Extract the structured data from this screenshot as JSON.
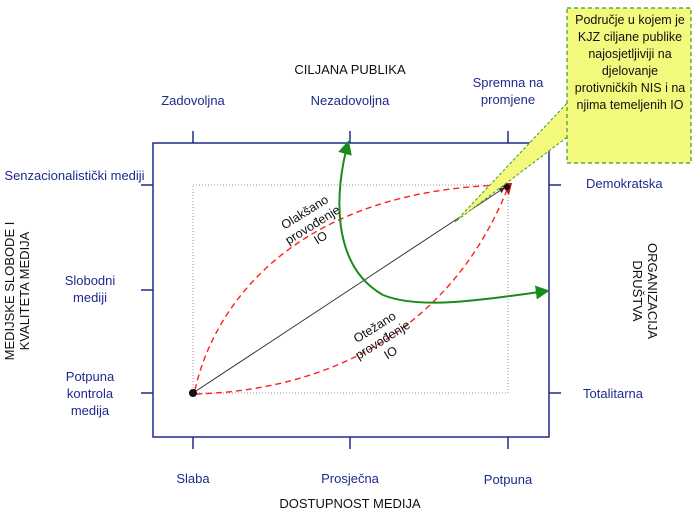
{
  "labels": {
    "top_axis_title": "CILJANA PUBLIKA",
    "top_ticks": [
      "Zadovoljna",
      "Nezadovoljna",
      "Spremna na promjene"
    ],
    "bottom_axis_title": "DOSTUPNOST MEDIJA",
    "bottom_ticks": [
      "Slaba",
      "Prosječna",
      "Potpuna"
    ],
    "left_axis_title": "MEDIJSKE SLOBODE I KVALITETA MEDIJA",
    "left_ticks": [
      "Senzacionalistički mediji",
      "Slobodni mediji",
      "Potpuna kontrola medija"
    ],
    "right_axis_title": "ORGANIZACIJA DRUŠTVA",
    "right_ticks": [
      "Demokratska",
      "Totalitarna"
    ],
    "upper_curve_label": "Olakšano provođenje IO",
    "lower_curve_label": "Otežano provođenje IO",
    "callout": "Područje u kojem je KJZ ciljane publike najosjetljiviji na djelovanje protivničkih NIS i na njima temeljenih IO"
  },
  "colors": {
    "axis_frame": "#1f2a8c",
    "dashed_curves": "#ff2020",
    "green_arrow": "#1a8a1a",
    "callout_fill": "#f2f97c",
    "callout_border": "#3c9a2a",
    "diagonal": "#333333"
  }
}
